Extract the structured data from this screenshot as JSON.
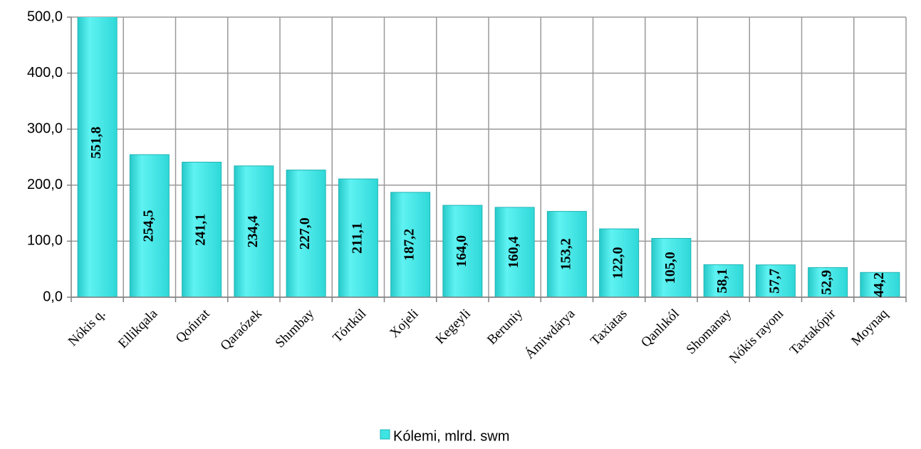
{
  "chart_data": {
    "type": "bar",
    "categories": [
      "Nókis q.",
      "Ellikqala",
      "Qońırat",
      "Qaraózek",
      "Shımbay",
      "Tórtkúl",
      "Xojeli",
      "Kegeyli",
      "Beruniy",
      "Ámiwdárya",
      "Taxiatas",
      "Qanlıkól",
      "Shomanay",
      "Nókis rayonı",
      "Taxtakópir",
      "Moynaq"
    ],
    "series": [
      {
        "name": "Kólemi, mlrd. swm",
        "color": "#3ee4e4",
        "values": [
          551.8,
          254.5,
          241.1,
          234.4,
          227.0,
          211.1,
          187.2,
          164.0,
          160.4,
          153.2,
          122.0,
          105.0,
          58.1,
          57.7,
          52.9,
          44.2
        ],
        "value_labels": [
          "551,8",
          "254,5",
          "241,1",
          "234,4",
          "227,0",
          "211,1",
          "187,2",
          "164,0",
          "160,4",
          "153,2",
          "122,0",
          "105,0",
          "58,1",
          "57,7",
          "52,9",
          "44,2"
        ]
      }
    ],
    "ylim": [
      0,
      500
    ],
    "yticks": [
      {
        "value": 0,
        "label": "0,0"
      },
      {
        "value": 100,
        "label": "100,0"
      },
      {
        "value": 200,
        "label": "200,0"
      },
      {
        "value": 300,
        "label": "300,0"
      },
      {
        "value": 400,
        "label": "400,0"
      },
      {
        "value": 500,
        "label": "500,0"
      }
    ],
    "grid": true,
    "legend": "bottom"
  }
}
